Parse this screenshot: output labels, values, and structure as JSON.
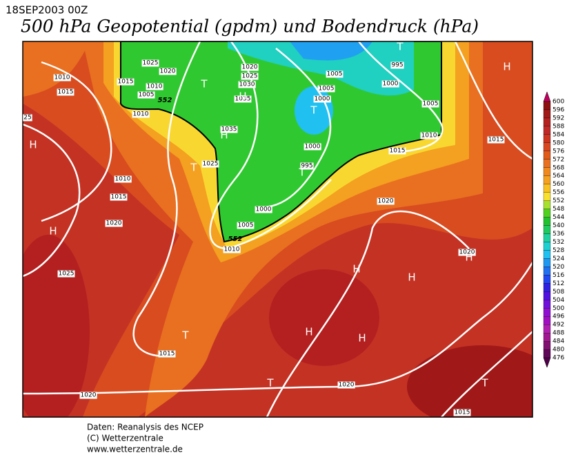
{
  "header": {
    "date": "18SEP2003 00Z",
    "title": "500 hPa Geopotential (gpdm) und Bodendruck (hPa)"
  },
  "map": {
    "isobar_labels": [
      "1010",
      "1015",
      "1025",
      "1020",
      "1015",
      "1010",
      "1005",
      "1010",
      "25",
      "1010",
      "1015",
      "1020",
      "1025",
      "1025",
      "1035",
      "1035",
      "1030",
      "1025",
      "1020",
      "1005",
      "995",
      "1000",
      "1005",
      "1000",
      "1005",
      "1010",
      "1015",
      "1015",
      "1000",
      "995",
      "1000",
      "1005",
      "1010",
      "1020",
      "1020",
      "1015",
      "1020",
      "1020",
      "1015"
    ],
    "contour_labels": [
      "552",
      "552"
    ],
    "centers": [
      "H",
      "H",
      "H",
      "H",
      "H",
      "T",
      "T",
      "T",
      "T",
      "T",
      "H",
      "H",
      "H",
      "H",
      "H",
      "T",
      "T",
      "T"
    ]
  },
  "colorbar": {
    "levels": [
      600,
      596,
      592,
      588,
      584,
      580,
      576,
      572,
      568,
      564,
      560,
      556,
      552,
      548,
      544,
      540,
      536,
      532,
      528,
      524,
      520,
      516,
      512,
      508,
      504,
      500,
      496,
      492,
      488,
      484,
      480,
      476
    ],
    "colors": [
      "#8c1010",
      "#a01818",
      "#b42020",
      "#c02828",
      "#cc3420",
      "#d84820",
      "#e05a18",
      "#e87020",
      "#f08820",
      "#f4a020",
      "#f8c020",
      "#f8e030",
      "#a8e030",
      "#50d020",
      "#20c030",
      "#20c860",
      "#20d0a0",
      "#20d0d0",
      "#20c0f0",
      "#2098f0",
      "#2070f0",
      "#2048f0",
      "#3020e0",
      "#5010e0",
      "#7010d8",
      "#9010d0",
      "#a010c0",
      "#b020b0",
      "#a01890",
      "#801070",
      "#600858"
    ]
  },
  "footer": {
    "lines": [
      "Daten: Reanalysis des NCEP",
      "(C) Wetterzentrale",
      "www.wetterzentrale.de"
    ]
  }
}
